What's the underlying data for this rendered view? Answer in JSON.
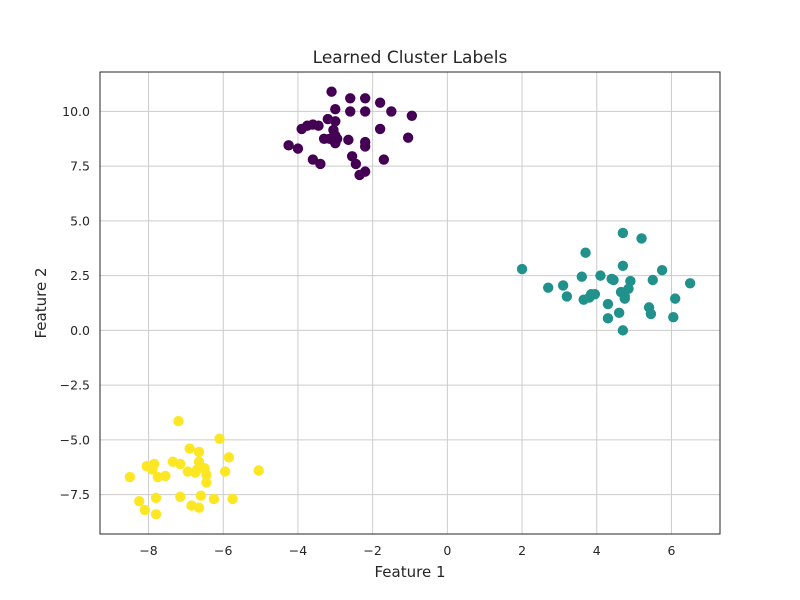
{
  "chart_data": {
    "type": "scatter",
    "title": "Learned Cluster Labels",
    "xlabel": "Feature 1",
    "ylabel": "Feature 2",
    "xlim": [
      -9.3,
      7.3
    ],
    "ylim": [
      -9.3,
      11.8
    ],
    "xticks": [
      -8,
      -6,
      -4,
      -2,
      0,
      2,
      4,
      6
    ],
    "yticks": [
      -7.5,
      -5.0,
      -2.5,
      0.0,
      2.5,
      5.0,
      7.5,
      10.0
    ],
    "xtick_labels": [
      "−8",
      "−6",
      "−4",
      "−2",
      "0",
      "2",
      "4",
      "6"
    ],
    "ytick_labels": [
      "−7.5",
      "−5.0",
      "−2.5",
      "0.0",
      "2.5",
      "5.0",
      "7.5",
      "10.0"
    ],
    "grid": true,
    "series": [
      {
        "color": "#440154",
        "points": [
          [
            -3.1,
            10.9
          ],
          [
            -2.6,
            10.6
          ],
          [
            -2.2,
            10.6
          ],
          [
            -1.8,
            10.4
          ],
          [
            -3.0,
            10.1
          ],
          [
            -2.6,
            10.0
          ],
          [
            -2.2,
            10.0
          ],
          [
            -1.5,
            10.0
          ],
          [
            -0.95,
            9.8
          ],
          [
            -3.2,
            9.65
          ],
          [
            -3.0,
            9.55
          ],
          [
            -3.6,
            9.4
          ],
          [
            -3.45,
            9.35
          ],
          [
            -3.75,
            9.35
          ],
          [
            -3.9,
            9.2
          ],
          [
            -3.05,
            9.15
          ],
          [
            -1.8,
            9.2
          ],
          [
            -3.0,
            8.9
          ],
          [
            -3.15,
            8.75
          ],
          [
            -2.95,
            8.75
          ],
          [
            -3.3,
            8.75
          ],
          [
            -2.65,
            8.7
          ],
          [
            -2.2,
            8.6
          ],
          [
            -3.0,
            8.55
          ],
          [
            -1.05,
            8.8
          ],
          [
            -4.25,
            8.45
          ],
          [
            -4.0,
            8.3
          ],
          [
            -2.2,
            8.4
          ],
          [
            -2.55,
            7.95
          ],
          [
            -3.6,
            7.8
          ],
          [
            -3.4,
            7.6
          ],
          [
            -1.7,
            7.8
          ],
          [
            -2.45,
            7.6
          ],
          [
            -2.2,
            7.25
          ],
          [
            -2.35,
            7.1
          ]
        ]
      },
      {
        "color": "#21918c",
        "points": [
          [
            4.7,
            4.45
          ],
          [
            5.2,
            4.2
          ],
          [
            3.7,
            3.55
          ],
          [
            4.7,
            2.95
          ],
          [
            2.0,
            2.8
          ],
          [
            5.75,
            2.75
          ],
          [
            4.1,
            2.5
          ],
          [
            3.6,
            2.45
          ],
          [
            4.4,
            2.35
          ],
          [
            4.45,
            2.3
          ],
          [
            5.5,
            2.3
          ],
          [
            4.9,
            2.25
          ],
          [
            6.5,
            2.15
          ],
          [
            3.1,
            2.05
          ],
          [
            2.7,
            1.95
          ],
          [
            4.85,
            1.9
          ],
          [
            4.65,
            1.75
          ],
          [
            3.95,
            1.65
          ],
          [
            3.85,
            1.65
          ],
          [
            3.2,
            1.55
          ],
          [
            4.75,
            1.55
          ],
          [
            3.8,
            1.5
          ],
          [
            3.65,
            1.4
          ],
          [
            6.1,
            1.45
          ],
          [
            4.75,
            1.45
          ],
          [
            4.3,
            1.2
          ],
          [
            5.4,
            1.05
          ],
          [
            4.6,
            0.8
          ],
          [
            5.45,
            0.75
          ],
          [
            6.05,
            0.6
          ],
          [
            4.3,
            0.55
          ],
          [
            4.7,
            0.0
          ]
        ]
      },
      {
        "color": "#fde725",
        "points": [
          [
            -7.2,
            -4.15
          ],
          [
            -6.1,
            -4.95
          ],
          [
            -6.9,
            -5.4
          ],
          [
            -6.65,
            -5.55
          ],
          [
            -5.85,
            -5.8
          ],
          [
            -7.35,
            -6.0
          ],
          [
            -7.15,
            -6.1
          ],
          [
            -7.85,
            -6.1
          ],
          [
            -8.05,
            -6.2
          ],
          [
            -6.65,
            -6.0
          ],
          [
            -6.5,
            -6.3
          ],
          [
            -6.7,
            -6.35
          ],
          [
            -7.9,
            -6.35
          ],
          [
            -6.95,
            -6.45
          ],
          [
            -5.05,
            -6.4
          ],
          [
            -5.95,
            -6.45
          ],
          [
            -6.75,
            -6.5
          ],
          [
            -6.45,
            -6.6
          ],
          [
            -8.5,
            -6.7
          ],
          [
            -7.75,
            -6.7
          ],
          [
            -7.55,
            -6.65
          ],
          [
            -6.45,
            -6.95
          ],
          [
            -7.15,
            -7.6
          ],
          [
            -7.8,
            -7.65
          ],
          [
            -6.6,
            -7.55
          ],
          [
            -6.25,
            -7.7
          ],
          [
            -5.75,
            -7.7
          ],
          [
            -8.25,
            -7.8
          ],
          [
            -6.85,
            -8.0
          ],
          [
            -6.65,
            -8.1
          ],
          [
            -8.1,
            -8.2
          ],
          [
            -7.8,
            -8.4
          ]
        ]
      }
    ]
  }
}
